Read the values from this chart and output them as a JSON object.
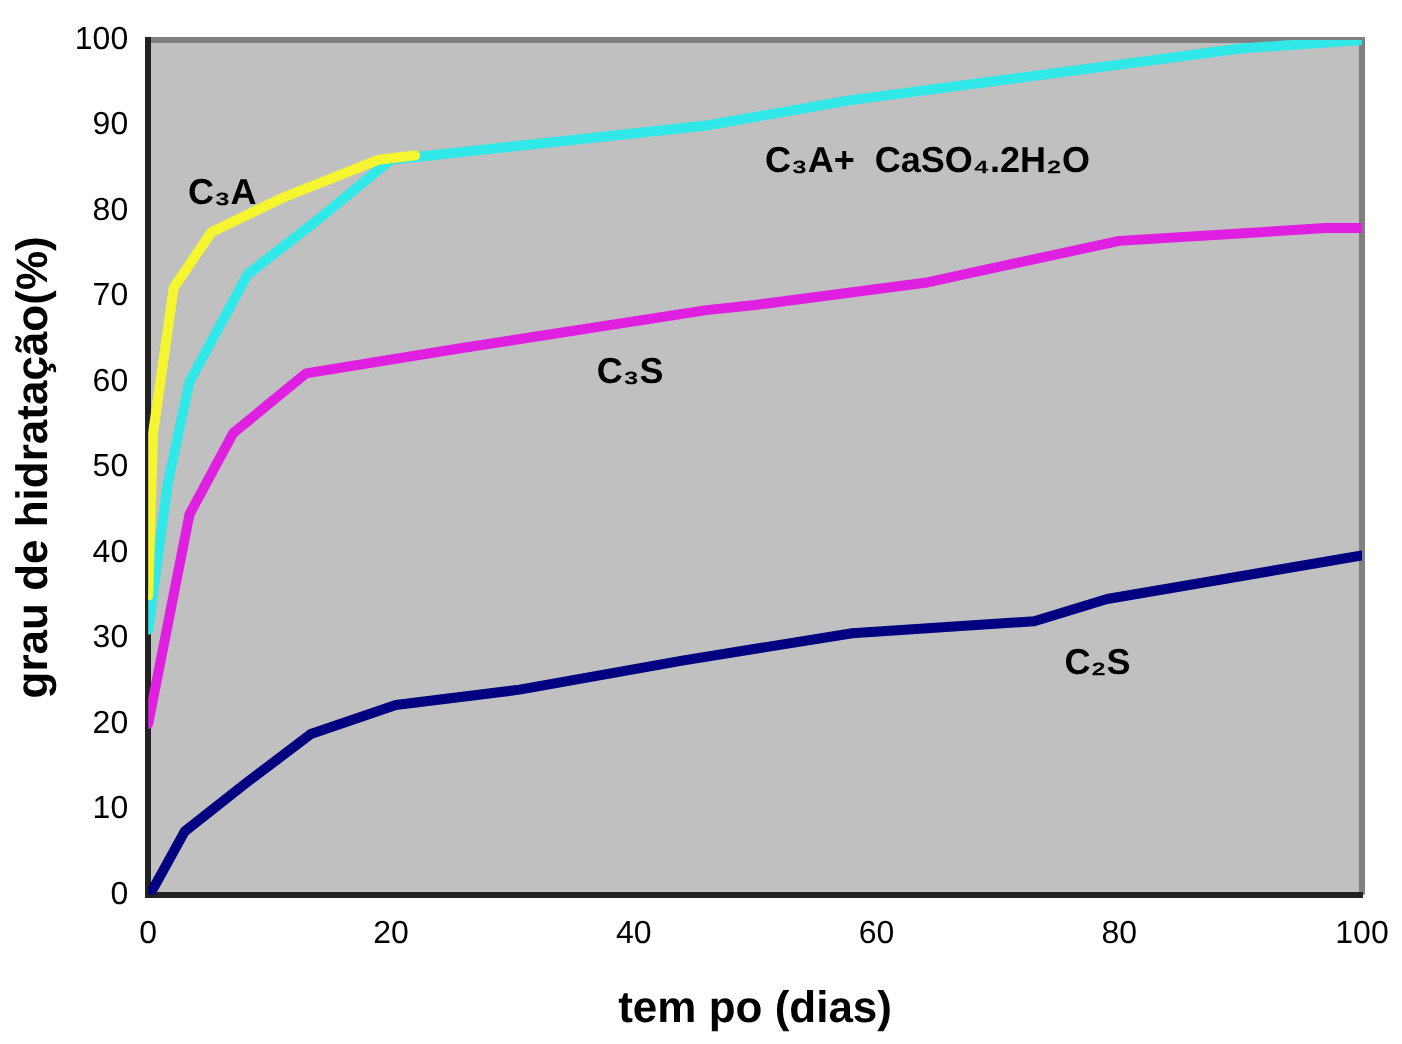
{
  "chart_data": {
    "type": "line",
    "xlabel": "tem po (dias)",
    "ylabel": "grau de hidratação(%)",
    "xlim": [
      0,
      100
    ],
    "xticks": [
      0,
      20,
      40,
      60,
      80,
      100
    ],
    "ylim": [
      0,
      100
    ],
    "yticks": [
      0,
      10,
      20,
      30,
      40,
      50,
      60,
      70,
      80,
      90,
      100
    ],
    "grid": false,
    "legend": false,
    "marker": "none",
    "line_style": "solid",
    "series": [
      {
        "name": "C₃A",
        "color": "#f5f530",
        "x": [
          0,
          0.4,
          2.1,
          5.2,
          11,
          19,
          22
        ],
        "values": [
          35,
          54,
          71,
          77.5,
          81.5,
          86,
          86.5
        ]
      },
      {
        "name": "C₃A+  CaSO₄.2H₂O",
        "color": "#30e8e8",
        "x": [
          0,
          1.6,
          3.4,
          8.2,
          14,
          20,
          46,
          50,
          58,
          82,
          90,
          100
        ],
        "values": [
          31,
          48,
          60,
          72.6,
          79,
          86,
          90,
          91,
          93,
          97.5,
          99,
          100
        ]
      },
      {
        "name": "C₃S",
        "color": "#e020e0",
        "x": [
          0,
          3.4,
          7,
          13,
          26,
          46,
          50,
          64,
          80,
          97,
          100
        ],
        "values": [
          20,
          44.5,
          54,
          61,
          64,
          68.4,
          69,
          71.6,
          76.5,
          78,
          78
        ]
      },
      {
        "name": "C₂S",
        "color": "#000080",
        "x": [
          0,
          0.4,
          3,
          8,
          13.4,
          20.4,
          30.6,
          44,
          58,
          73,
          79,
          100
        ],
        "values": [
          0,
          0.7,
          7.4,
          13,
          18.8,
          22.2,
          24,
          27.4,
          30.6,
          32,
          34.6,
          39.7
        ]
      }
    ]
  }
}
